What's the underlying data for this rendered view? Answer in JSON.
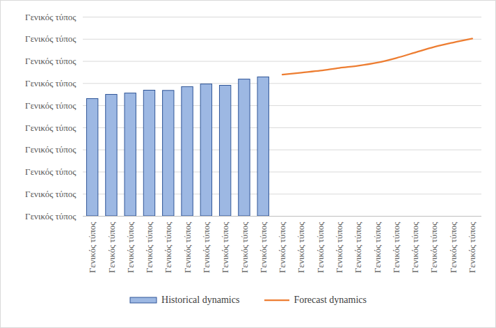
{
  "chart_data": {
    "type": "bar",
    "categories": [
      "Γενικός τύπος",
      "Γενικός τύπος",
      "Γενικός τύπος",
      "Γενικός τύπος",
      "Γενικός τύπος",
      "Γενικός τύπος",
      "Γενικός τύπος",
      "Γενικός τύπος",
      "Γενικός τύπος",
      "Γενικός τύπος",
      "Γενικός τύπος",
      "Γενικός τύπος",
      "Γενικός τύπος",
      "Γενικός τύπος",
      "Γενικός τύπος",
      "Γενικός τύπος",
      "Γενικός τύπος",
      "Γενικός τύπος",
      "Γενικός τύπος",
      "Γενικός τύπος",
      "Γενικός τύπος"
    ],
    "series": [
      {
        "name": "Historical dynamics",
        "type": "bar",
        "color": "#9db8e3",
        "values": [
          5.3,
          5.49,
          5.55,
          5.68,
          5.67,
          5.84,
          5.96,
          5.9,
          6.18,
          6.28,
          null,
          null,
          null,
          null,
          null,
          null,
          null,
          null,
          null,
          null,
          null
        ]
      },
      {
        "name": "Forecast dynamics",
        "type": "line",
        "color": "#ed7d31",
        "values": [
          null,
          null,
          null,
          null,
          null,
          null,
          null,
          null,
          null,
          null,
          6.4,
          6.49,
          6.58,
          6.7,
          6.8,
          6.94,
          7.15,
          7.4,
          7.65,
          7.85,
          8.03
        ]
      }
    ],
    "ylim": [
      0,
      9
    ],
    "yticks": [
      {
        "value": 0,
        "label": "Γενικός τύπος"
      },
      {
        "value": 1,
        "label": "Γενικός τύπος"
      },
      {
        "value": 2,
        "label": "Γενικός τύπος"
      },
      {
        "value": 3,
        "label": "Γενικός τύπος"
      },
      {
        "value": 4,
        "label": "Γενικός τύπος"
      },
      {
        "value": 5,
        "label": "Γενικός τύπος"
      },
      {
        "value": 6,
        "label": "Γενικός τύπος"
      },
      {
        "value": 7,
        "label": "Γενικός τύπος"
      },
      {
        "value": 8,
        "label": "Γενικός τύπος"
      },
      {
        "value": 9,
        "label": "Γενικός τύπος"
      }
    ],
    "grid": true,
    "legend": "bottom"
  }
}
